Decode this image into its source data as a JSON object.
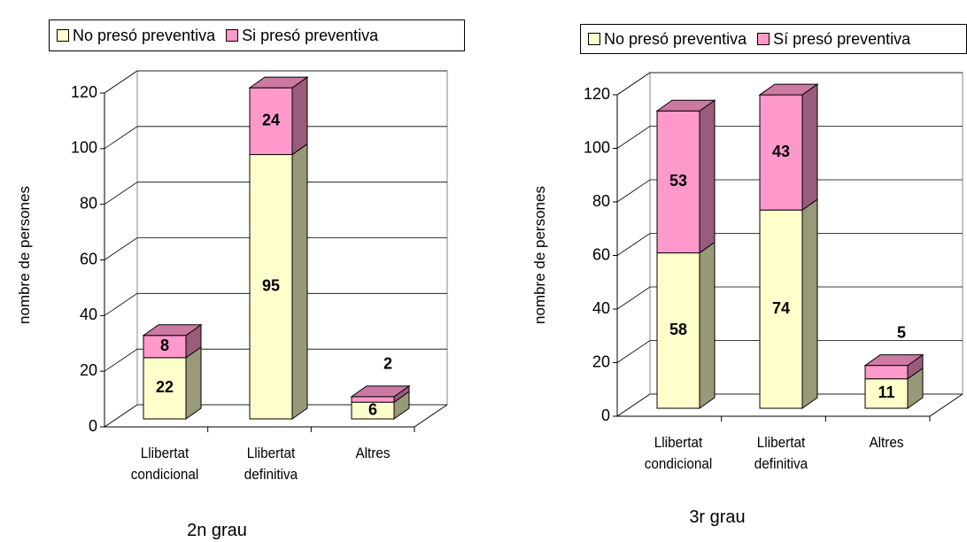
{
  "chart_data": [
    {
      "type": "bar",
      "stacked": true,
      "xlabel": "2n grau",
      "ylabel": "nombre de persones",
      "categories": [
        "Llibertat condicional",
        "Llibertat definitiva",
        "Altres"
      ],
      "series": [
        {
          "name": "No presó preventiva",
          "color": "#ffffcc",
          "values": [
            22,
            95,
            6
          ]
        },
        {
          "name": "Si presó preventiva",
          "color": "#ff99cc",
          "values": [
            8,
            24,
            2
          ]
        }
      ],
      "ylim": [
        0,
        120
      ],
      "yticks": [
        0,
        20,
        40,
        60,
        80,
        100,
        120
      ],
      "grid": true
    },
    {
      "type": "bar",
      "stacked": true,
      "xlabel": "3r grau",
      "ylabel": "nombre de persones",
      "categories": [
        "Llibertat condicional",
        "Llibertat definitiva",
        "Altres"
      ],
      "series": [
        {
          "name": "No presó preventiva",
          "color": "#ffffcc",
          "values": [
            58,
            74,
            11
          ]
        },
        {
          "name": "Sí presó preventiva",
          "color": "#ff99cc",
          "values": [
            53,
            43,
            5
          ]
        }
      ],
      "ylim": [
        0,
        120
      ],
      "yticks": [
        0,
        20,
        40,
        60,
        80,
        100,
        120
      ],
      "grid": true
    }
  ]
}
